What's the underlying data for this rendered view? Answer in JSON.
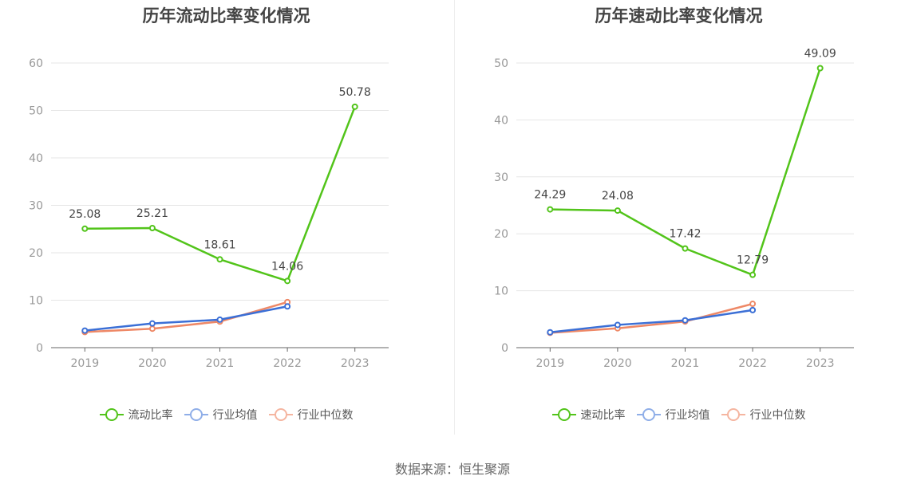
{
  "source": "数据来源：恒生聚源",
  "chart_data": [
    {
      "type": "line",
      "title": "历年流动比率变化情况",
      "categories": [
        "2019",
        "2020",
        "2021",
        "2022",
        "2023"
      ],
      "ylim": [
        0,
        60
      ],
      "yticks": [
        "0",
        "10",
        "20",
        "30",
        "40",
        "50",
        "60"
      ],
      "grid": true,
      "legend_position": "bottom",
      "series": [
        {
          "name": "流动比率",
          "color": "#52c41a",
          "values": [
            25.08,
            25.21,
            18.61,
            14.06,
            50.78
          ],
          "labels": [
            "25.08",
            "25.21",
            "18.61",
            "14.06",
            "50.78"
          ]
        },
        {
          "name": "行业均值",
          "color": "#3b6fd6",
          "legend_color": "#8faee8",
          "values": [
            3.6,
            5.1,
            5.9,
            8.7,
            null
          ]
        },
        {
          "name": "行业中位数",
          "color": "#ee8866",
          "legend_color": "#f5b5a0",
          "values": [
            3.3,
            4.0,
            5.5,
            9.6,
            null
          ]
        }
      ]
    },
    {
      "type": "line",
      "title": "历年速动比率变化情况",
      "categories": [
        "2019",
        "2020",
        "2021",
        "2022",
        "2023"
      ],
      "ylim": [
        0,
        50
      ],
      "yticks": [
        "0",
        "10",
        "20",
        "30",
        "40",
        "50"
      ],
      "grid": true,
      "legend_position": "bottom",
      "series": [
        {
          "name": "速动比率",
          "color": "#52c41a",
          "values": [
            24.29,
            24.08,
            17.42,
            12.79,
            49.09
          ],
          "labels": [
            "24.29",
            "24.08",
            "17.42",
            "12.79",
            "49.09"
          ]
        },
        {
          "name": "行业均值",
          "color": "#3b6fd6",
          "legend_color": "#8faee8",
          "values": [
            2.7,
            4.0,
            4.8,
            6.6,
            null
          ]
        },
        {
          "name": "行业中位数",
          "color": "#ee8866",
          "legend_color": "#f5b5a0",
          "values": [
            2.6,
            3.4,
            4.6,
            7.7,
            null
          ]
        }
      ]
    }
  ]
}
